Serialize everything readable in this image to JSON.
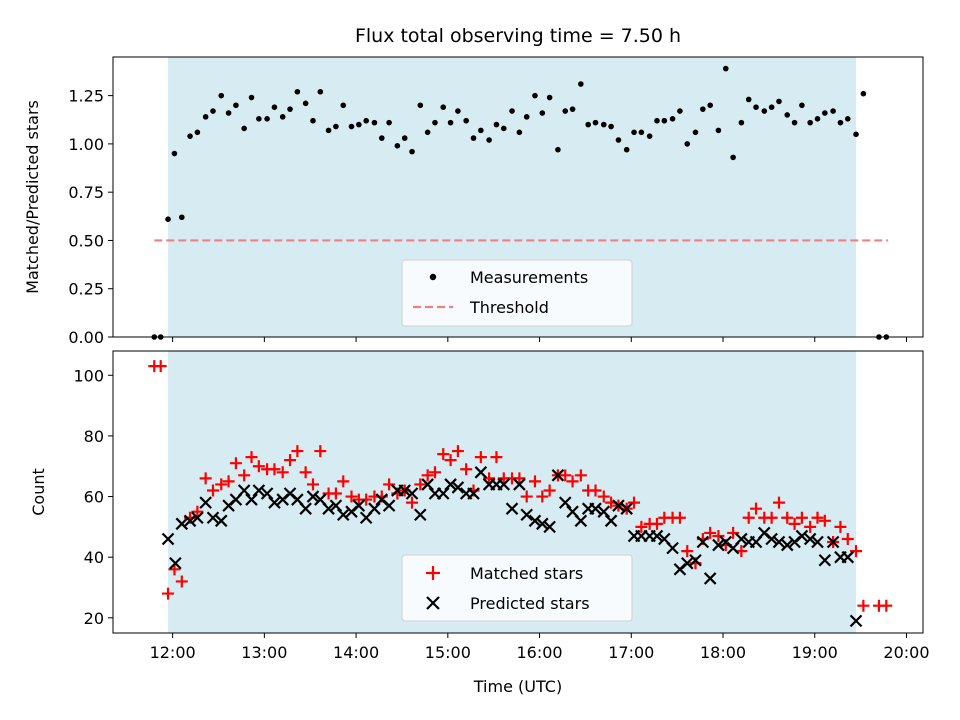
{
  "chart_data": {
    "title": "Flux total observing time = 7.50 h",
    "xlabel": "Time (UTC)",
    "x_unit": "hours UTC",
    "x_ticks": [
      {
        "value": 12,
        "label": "12:00"
      },
      {
        "value": 13,
        "label": "13:00"
      },
      {
        "value": 14,
        "label": "14:00"
      },
      {
        "value": 15,
        "label": "15:00"
      },
      {
        "value": 16,
        "label": "16:00"
      },
      {
        "value": 17,
        "label": "17:00"
      },
      {
        "value": 18,
        "label": "18:00"
      },
      {
        "value": 19,
        "label": "19:00"
      },
      {
        "value": 20,
        "label": "20:00"
      }
    ],
    "xlim": [
      11.35,
      20.18
    ],
    "observing_window": {
      "start": 11.95,
      "end": 19.45,
      "color": "#add8e6"
    },
    "panels": [
      {
        "type": "scatter",
        "ylabel": "Matched/Predicted stars",
        "ylim": [
          0,
          1.45
        ],
        "yticks": [
          "0.00",
          "0.25",
          "0.50",
          "0.75",
          "1.00",
          "1.25"
        ],
        "ytick_values": [
          0,
          0.25,
          0.5,
          0.75,
          1.0,
          1.25
        ],
        "threshold": {
          "value": 0.5,
          "x_range": [
            11.8,
            19.8
          ],
          "color": "#f08080",
          "label": "Threshold"
        },
        "series": [
          {
            "name": "Measurements",
            "marker": "dot",
            "color": "#000000",
            "x": [
              11.8,
              11.87,
              11.95,
              12.02,
              12.1,
              12.19,
              12.27,
              12.36,
              12.44,
              12.53,
              12.61,
              12.69,
              12.78,
              12.86,
              12.94,
              13.03,
              13.11,
              13.2,
              13.28,
              13.36,
              13.45,
              13.53,
              13.61,
              13.7,
              13.78,
              13.86,
              13.95,
              14.03,
              14.11,
              14.2,
              14.28,
              14.36,
              14.45,
              14.53,
              14.61,
              14.7,
              14.78,
              14.86,
              14.95,
              15.03,
              15.11,
              15.2,
              15.28,
              15.36,
              15.45,
              15.53,
              15.61,
              15.7,
              15.78,
              15.86,
              15.95,
              16.03,
              16.11,
              16.2,
              16.28,
              16.36,
              16.45,
              16.53,
              16.61,
              16.7,
              16.78,
              16.86,
              16.95,
              17.03,
              17.11,
              17.2,
              17.28,
              17.36,
              17.45,
              17.53,
              17.61,
              17.7,
              17.78,
              17.86,
              17.95,
              18.03,
              18.11,
              18.2,
              18.28,
              18.36,
              18.45,
              18.53,
              18.61,
              18.7,
              18.78,
              18.86,
              18.95,
              19.03,
              19.11,
              19.2,
              19.28,
              19.36,
              19.45,
              19.53,
              19.7,
              19.78
            ],
            "y": [
              0.0,
              0.0,
              0.61,
              0.95,
              0.62,
              1.04,
              1.06,
              1.14,
              1.17,
              1.25,
              1.16,
              1.2,
              1.08,
              1.24,
              1.13,
              1.13,
              1.19,
              1.14,
              1.18,
              1.27,
              1.21,
              1.12,
              1.27,
              1.07,
              1.09,
              1.2,
              1.09,
              1.1,
              1.12,
              1.11,
              1.03,
              1.11,
              0.99,
              1.03,
              0.96,
              1.2,
              1.06,
              1.11,
              1.19,
              1.11,
              1.17,
              1.12,
              1.03,
              1.07,
              1.02,
              1.1,
              1.08,
              1.17,
              1.06,
              1.14,
              1.25,
              1.16,
              1.24,
              0.97,
              1.17,
              1.18,
              1.31,
              1.1,
              1.11,
              1.1,
              1.09,
              1.02,
              0.97,
              1.06,
              1.06,
              1.04,
              1.12,
              1.12,
              1.13,
              1.17,
              1.0,
              1.06,
              1.18,
              1.2,
              1.07,
              1.39,
              0.93,
              1.11,
              1.23,
              1.19,
              1.17,
              1.19,
              1.22,
              1.15,
              1.11,
              1.2,
              1.11,
              1.13,
              1.16,
              1.17,
              1.11,
              1.13,
              1.05,
              1.26,
              0.0,
              0.0
            ]
          }
        ],
        "legend": {
          "location": "lower center",
          "entries": [
            "Measurements",
            "Threshold"
          ]
        }
      },
      {
        "type": "scatter",
        "ylabel": "Count",
        "ylim": [
          15,
          108
        ],
        "yticks": [
          "20",
          "40",
          "60",
          "80",
          "100"
        ],
        "ytick_values": [
          20,
          40,
          60,
          80,
          100
        ],
        "series": [
          {
            "name": "Matched stars",
            "marker": "plus",
            "color": "#ff0000",
            "x": [
              11.8,
              11.87,
              11.95,
              12.02,
              12.1,
              12.19,
              12.27,
              12.36,
              12.44,
              12.53,
              12.61,
              12.69,
              12.78,
              12.86,
              12.94,
              13.03,
              13.11,
              13.2,
              13.28,
              13.36,
              13.45,
              13.53,
              13.61,
              13.7,
              13.78,
              13.86,
              13.95,
              14.03,
              14.11,
              14.2,
              14.28,
              14.36,
              14.45,
              14.53,
              14.61,
              14.7,
              14.78,
              14.86,
              14.95,
              15.03,
              15.11,
              15.2,
              15.28,
              15.36,
              15.45,
              15.53,
              15.61,
              15.7,
              15.78,
              15.86,
              15.95,
              16.03,
              16.11,
              16.2,
              16.28,
              16.36,
              16.45,
              16.53,
              16.61,
              16.7,
              16.78,
              16.86,
              16.95,
              17.03,
              17.11,
              17.2,
              17.28,
              17.36,
              17.45,
              17.53,
              17.61,
              17.7,
              17.78,
              17.86,
              17.95,
              18.03,
              18.11,
              18.2,
              18.28,
              18.36,
              18.45,
              18.53,
              18.61,
              18.7,
              18.78,
              18.86,
              18.95,
              19.03,
              19.11,
              19.2,
              19.28,
              19.36,
              19.45,
              19.53,
              19.7,
              19.78
            ],
            "y": [
              103,
              103,
              28,
              36,
              32,
              53,
              55,
              66,
              62,
              64,
              65,
              71,
              67,
              73,
              70,
              69,
              69,
              68,
              72,
              75,
              68,
              64,
              75,
              61,
              61,
              65,
              60,
              59,
              59,
              60,
              60,
              64,
              61,
              62,
              58,
              64,
              67,
              68,
              74,
              72,
              75,
              69,
              62,
              73,
              66,
              73,
              66,
              66,
              66,
              60,
              65,
              60,
              62,
              67,
              67,
              65,
              67,
              62,
              62,
              60,
              58,
              57,
              56,
              58,
              50,
              51,
              51,
              53,
              53,
              53,
              42,
              38,
              46,
              48,
              47,
              44,
              48,
              42,
              53,
              56,
              53,
              53,
              58,
              53,
              51,
              53,
              50,
              53,
              52,
              45,
              50,
              46,
              42,
              24,
              24,
              24
            ]
          },
          {
            "name": "Predicted stars",
            "marker": "x",
            "color": "#000000",
            "x": [
              11.95,
              12.03,
              12.1,
              12.19,
              12.27,
              12.36,
              12.44,
              12.53,
              12.61,
              12.69,
              12.78,
              12.86,
              12.94,
              13.03,
              13.11,
              13.2,
              13.28,
              13.36,
              13.45,
              13.53,
              13.61,
              13.7,
              13.78,
              13.86,
              13.95,
              14.03,
              14.11,
              14.2,
              14.28,
              14.36,
              14.45,
              14.53,
              14.61,
              14.7,
              14.78,
              14.86,
              14.95,
              15.03,
              15.11,
              15.2,
              15.28,
              15.36,
              15.45,
              15.53,
              15.61,
              15.7,
              15.78,
              15.86,
              15.95,
              16.03,
              16.11,
              16.2,
              16.28,
              16.36,
              16.45,
              16.53,
              16.61,
              16.7,
              16.78,
              16.86,
              16.95,
              17.03,
              17.11,
              17.2,
              17.28,
              17.36,
              17.45,
              17.53,
              17.61,
              17.7,
              17.78,
              17.86,
              17.95,
              18.03,
              18.11,
              18.2,
              18.28,
              18.36,
              18.45,
              18.53,
              18.61,
              18.7,
              18.78,
              18.86,
              18.95,
              19.03,
              19.11,
              19.2,
              19.28,
              19.36,
              19.45
            ],
            "y": [
              46,
              38,
              51,
              52,
              53,
              58,
              53,
              52,
              57,
              59,
              62,
              59,
              62,
              61,
              58,
              59,
              61,
              59,
              56,
              60,
              59,
              56,
              57,
              54,
              55,
              57,
              53,
              56,
              59,
              57,
              62,
              62,
              61,
              54,
              64,
              61,
              61,
              64,
              63,
              61,
              61,
              68,
              64,
              64,
              64,
              56,
              64,
              54,
              52,
              51,
              50,
              67,
              58,
              55,
              52,
              56,
              56,
              55,
              52,
              57,
              56,
              47,
              47,
              47,
              47,
              46,
              43,
              36,
              38,
              39,
              45,
              33,
              44,
              45,
              43,
              46,
              45,
              45,
              48,
              46,
              45,
              44,
              45,
              47,
              46,
              45,
              39,
              45,
              40,
              40,
              19
            ]
          }
        ],
        "legend": {
          "location": "lower center",
          "entries": [
            "Matched stars",
            "Predicted stars"
          ]
        }
      }
    ]
  }
}
